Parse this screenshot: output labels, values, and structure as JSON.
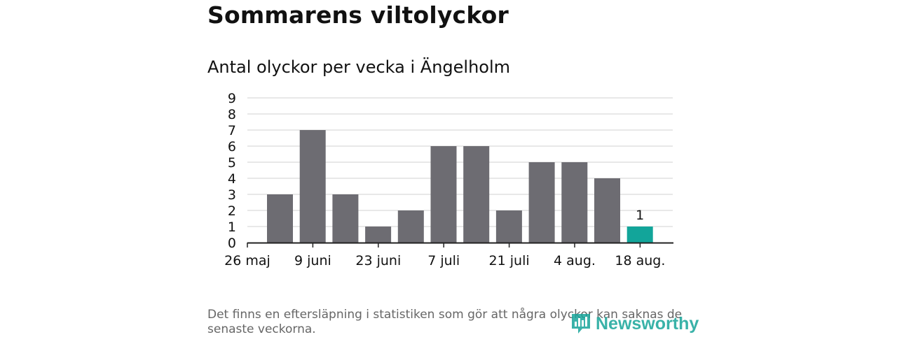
{
  "header": {
    "title": "Sommarens viltolyckor",
    "subtitle": "Antal olyckor per vecka i Ängelholm"
  },
  "footnote": "Det finns en eftersläpning i statistiken som gör att några olyckor kan saknas de senaste veckorna.",
  "logo": {
    "text": "Newsworthy"
  },
  "colors": {
    "bar": "#6d6c72",
    "highlight": "#12a59a",
    "grid": "#d9d9d9",
    "axis": "#222222",
    "logo": "#17a59a"
  },
  "chart_data": {
    "type": "bar",
    "title": "Antal olyckor per vecka i Ängelholm",
    "xlabel": "",
    "ylabel": "",
    "ylim": [
      0,
      9
    ],
    "yticks": [
      0,
      1,
      2,
      3,
      4,
      5,
      6,
      7,
      8,
      9
    ],
    "grid": true,
    "x_start": "26 maj",
    "x_ticks": [
      "26 maj",
      "9 juni",
      "23 juni",
      "7 juli",
      "21 juli",
      "4 aug.",
      "18 aug."
    ],
    "values": [
      3,
      7,
      3,
      1,
      2,
      6,
      6,
      2,
      5,
      5,
      4,
      1
    ],
    "highlight_index": 11,
    "annotations": [
      {
        "bar_index": 11,
        "text": "1"
      }
    ]
  }
}
